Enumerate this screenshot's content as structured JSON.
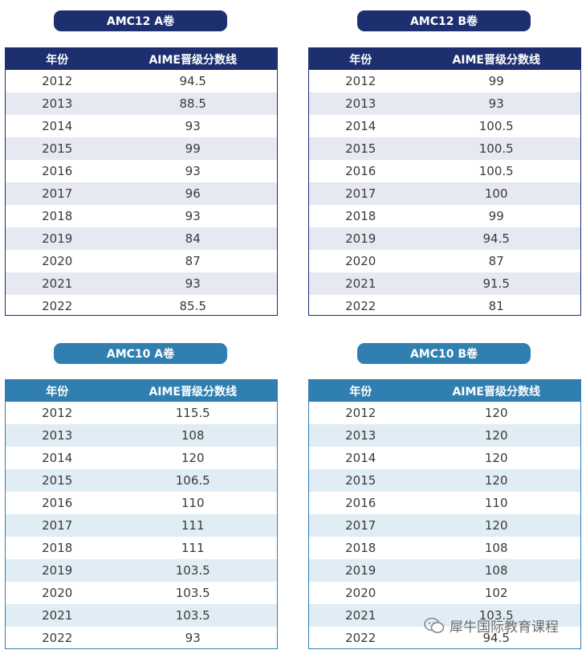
{
  "tables": [
    {
      "title": "AMC12 A卷",
      "header": {
        "year": "年份",
        "score": "AIME晋级分数线"
      },
      "rows": [
        {
          "year": "2012",
          "score": "94.5"
        },
        {
          "year": "2013",
          "score": "88.5"
        },
        {
          "year": "2014",
          "score": "93"
        },
        {
          "year": "2015",
          "score": "99"
        },
        {
          "year": "2016",
          "score": "93"
        },
        {
          "year": "2017",
          "score": "96"
        },
        {
          "year": "2018",
          "score": "93"
        },
        {
          "year": "2019",
          "score": "84"
        },
        {
          "year": "2020",
          "score": "87"
        },
        {
          "year": "2021",
          "score": "93"
        },
        {
          "year": "2022",
          "score": "85.5"
        }
      ]
    },
    {
      "title": "AMC12 B卷",
      "header": {
        "year": "年份",
        "score": "AIME晋级分数线"
      },
      "rows": [
        {
          "year": "2012",
          "score": "99"
        },
        {
          "year": "2013",
          "score": "93"
        },
        {
          "year": "2014",
          "score": "100.5"
        },
        {
          "year": "2015",
          "score": "100.5"
        },
        {
          "year": "2016",
          "score": "100.5"
        },
        {
          "year": "2017",
          "score": "100"
        },
        {
          "year": "2018",
          "score": "99"
        },
        {
          "year": "2019",
          "score": "94.5"
        },
        {
          "year": "2020",
          "score": "87"
        },
        {
          "year": "2021",
          "score": "91.5"
        },
        {
          "year": "2022",
          "score": "81"
        }
      ]
    },
    {
      "title": "AMC10 A卷",
      "header": {
        "year": "年份",
        "score": "AIME晋级分数线"
      },
      "rows": [
        {
          "year": "2012",
          "score": "115.5"
        },
        {
          "year": "2013",
          "score": "108"
        },
        {
          "year": "2014",
          "score": "120"
        },
        {
          "year": "2015",
          "score": "106.5"
        },
        {
          "year": "2016",
          "score": "110"
        },
        {
          "year": "2017",
          "score": "111"
        },
        {
          "year": "2018",
          "score": "111"
        },
        {
          "year": "2019",
          "score": "103.5"
        },
        {
          "year": "2020",
          "score": "103.5"
        },
        {
          "year": "2021",
          "score": "103.5"
        },
        {
          "year": "2022",
          "score": "93"
        }
      ]
    },
    {
      "title": "AMC10 B卷",
      "header": {
        "year": "年份",
        "score": "AIME晋级分数线"
      },
      "rows": [
        {
          "year": "2012",
          "score": "120"
        },
        {
          "year": "2013",
          "score": "120"
        },
        {
          "year": "2014",
          "score": "120"
        },
        {
          "year": "2015",
          "score": "120"
        },
        {
          "year": "2016",
          "score": "110"
        },
        {
          "year": "2017",
          "score": "120"
        },
        {
          "year": "2018",
          "score": "108"
        },
        {
          "year": "2019",
          "score": "108"
        },
        {
          "year": "2020",
          "score": "102"
        },
        {
          "year": "2021",
          "score": "103.5"
        },
        {
          "year": "2022",
          "score": "94.5"
        }
      ]
    }
  ],
  "watermark": {
    "text": "犀牛国际教育课程",
    "icon": "wechat-icon"
  },
  "colors": {
    "navy": "#1d2f6f",
    "blue": "#2f7fb0"
  }
}
